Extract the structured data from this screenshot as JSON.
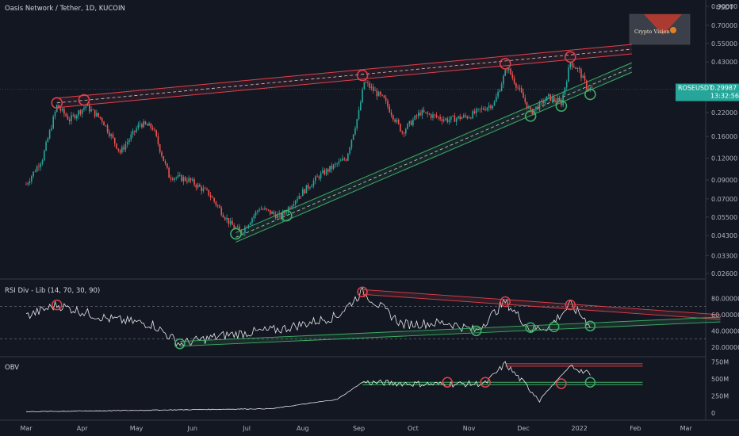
{
  "header": {
    "title": "Oasis Network / Tether, 1D, KUCOIN"
  },
  "price_axis": {
    "currency": "USDT",
    "ticks": [
      "0.90000",
      "0.70000",
      "0.55000",
      "0.43000",
      "0.30000",
      "0.22000",
      "0.16000",
      "0.12000",
      "0.09000",
      "0.07000",
      "0.05500",
      "0.04300",
      "0.03300",
      "0.02600"
    ]
  },
  "price_tag": {
    "symbol": "ROSEUSDT",
    "price": "0.29987",
    "countdown": "13:32:56",
    "color": "#26a69a"
  },
  "rsi_panel": {
    "title": "RSI Div - Lib (14, 70, 30, 90)",
    "ticks": [
      "80.00000",
      "60.00000",
      "40.00000",
      "20.00000"
    ]
  },
  "obv_panel": {
    "title": "OBV",
    "ticks": [
      "750M",
      "500M",
      "250M",
      "0"
    ]
  },
  "time_axis": {
    "labels": [
      "Mar",
      "Apr",
      "May",
      "Jun",
      "Jul",
      "Aug",
      "Sep",
      "Oct",
      "Nov",
      "Dec",
      "2022",
      "Feb",
      "Mar"
    ]
  },
  "logo": {
    "text": "Crypto Vision"
  },
  "colors": {
    "background": "#131722",
    "up": "#26a69a",
    "down": "#ef5350",
    "resistance": "#e0414a",
    "support": "#3fae66",
    "line": "#e8e8e8"
  },
  "chart_data": {
    "type": "candlestick",
    "symbol": "ROSEUSDT",
    "exchange": "KUCOIN",
    "interval": "1D",
    "price_scale": "log",
    "price_range": [
      0.026,
      0.9
    ],
    "close_series": [
      {
        "date": "2021-03-01",
        "close": 0.085
      },
      {
        "date": "2021-03-10",
        "close": 0.12
      },
      {
        "date": "2021-03-18",
        "close": 0.24
      },
      {
        "date": "2021-03-25",
        "close": 0.2
      },
      {
        "date": "2021-04-03",
        "close": 0.24
      },
      {
        "date": "2021-04-12",
        "close": 0.2
      },
      {
        "date": "2021-04-22",
        "close": 0.13
      },
      {
        "date": "2021-05-03",
        "close": 0.19
      },
      {
        "date": "2021-05-10",
        "close": 0.18
      },
      {
        "date": "2021-05-19",
        "close": 0.095
      },
      {
        "date": "2021-05-30",
        "close": 0.09
      },
      {
        "date": "2021-06-10",
        "close": 0.075
      },
      {
        "date": "2021-06-22",
        "close": 0.05
      },
      {
        "date": "2021-06-28",
        "close": 0.045
      },
      {
        "date": "2021-07-08",
        "close": 0.062
      },
      {
        "date": "2021-07-20",
        "close": 0.055
      },
      {
        "date": "2021-07-28",
        "close": 0.07
      },
      {
        "date": "2021-08-10",
        "close": 0.095
      },
      {
        "date": "2021-08-25",
        "close": 0.12
      },
      {
        "date": "2021-09-01",
        "close": 0.22
      },
      {
        "date": "2021-09-04",
        "close": 0.33
      },
      {
        "date": "2021-09-15",
        "close": 0.26
      },
      {
        "date": "2021-09-25",
        "close": 0.17
      },
      {
        "date": "2021-10-05",
        "close": 0.22
      },
      {
        "date": "2021-10-20",
        "close": 0.2
      },
      {
        "date": "2021-11-01",
        "close": 0.21
      },
      {
        "date": "2021-11-15",
        "close": 0.25
      },
      {
        "date": "2021-11-22",
        "close": 0.4
      },
      {
        "date": "2021-11-30",
        "close": 0.28
      },
      {
        "date": "2021-12-05",
        "close": 0.22
      },
      {
        "date": "2021-12-15",
        "close": 0.27
      },
      {
        "date": "2021-12-22",
        "close": 0.25
      },
      {
        "date": "2021-12-27",
        "close": 0.43
      },
      {
        "date": "2022-01-01",
        "close": 0.38
      },
      {
        "date": "2022-01-05",
        "close": 0.31
      },
      {
        "date": "2022-01-08",
        "close": 0.29987
      }
    ],
    "resistance_channel": {
      "from": {
        "date": "2021-03-18",
        "price": 0.25
      },
      "to": {
        "date": "2022-01-30",
        "price": 0.51
      }
    },
    "support_channel": {
      "from": {
        "date": "2021-06-25",
        "price": 0.042
      },
      "to": {
        "date": "2022-01-30",
        "price": 0.4
      }
    },
    "touch_points": {
      "resistance": [
        {
          "date": "2021-03-18",
          "price": 0.25
        },
        {
          "date": "2021-04-02",
          "price": 0.26
        },
        {
          "date": "2021-09-03",
          "price": 0.36
        },
        {
          "date": "2021-11-21",
          "price": 0.42
        },
        {
          "date": "2021-12-27",
          "price": 0.46
        }
      ],
      "support": [
        {
          "date": "2021-06-25",
          "price": 0.044
        },
        {
          "date": "2021-07-23",
          "price": 0.056
        },
        {
          "date": "2021-12-05",
          "price": 0.21
        },
        {
          "date": "2021-12-22",
          "price": 0.24
        },
        {
          "date": "2022-01-07",
          "price": 0.28
        }
      ]
    },
    "rsi": {
      "range": [
        10,
        100
      ],
      "levels": [
        70,
        30
      ],
      "values": [
        {
          "date": "2021-03-01",
          "value": 58
        },
        {
          "date": "2021-03-18",
          "value": 72
        },
        {
          "date": "2021-04-15",
          "value": 55
        },
        {
          "date": "2021-05-10",
          "value": 48
        },
        {
          "date": "2021-05-25",
          "value": 24
        },
        {
          "date": "2021-06-20",
          "value": 35
        },
        {
          "date": "2021-07-20",
          "value": 42
        },
        {
          "date": "2021-08-20",
          "value": 58
        },
        {
          "date": "2021-09-03",
          "value": 88
        },
        {
          "date": "2021-09-25",
          "value": 48
        },
        {
          "date": "2021-10-20",
          "value": 50
        },
        {
          "date": "2021-11-05",
          "value": 40
        },
        {
          "date": "2021-11-21",
          "value": 76
        },
        {
          "date": "2021-12-05",
          "value": 42
        },
        {
          "date": "2021-12-15",
          "value": 45
        },
        {
          "date": "2021-12-27",
          "value": 72
        },
        {
          "date": "2022-01-07",
          "value": 48
        }
      ],
      "trendlines": {
        "bearish": {
          "from": {
            "date": "2021-09-03",
            "value": 88
          },
          "to": {
            "date": "2022-03-20",
            "value": 57
          }
        },
        "bullish": {
          "from": {
            "date": "2021-05-25",
            "value": 24
          },
          "to": {
            "date": "2022-03-20",
            "value": 54
          }
        }
      }
    },
    "obv": {
      "range": [
        -80,
        800
      ],
      "unit": "M",
      "values": [
        {
          "date": "2021-03-01",
          "value": 20
        },
        {
          "date": "2021-05-01",
          "value": 40
        },
        {
          "date": "2021-07-15",
          "value": 65
        },
        {
          "date": "2021-08-20",
          "value": 200
        },
        {
          "date": "2021-09-03",
          "value": 450
        },
        {
          "date": "2021-10-15",
          "value": 420
        },
        {
          "date": "2021-11-10",
          "value": 430
        },
        {
          "date": "2021-11-21",
          "value": 720
        },
        {
          "date": "2021-12-10",
          "value": 200
        },
        {
          "date": "2021-12-27",
          "value": 690
        },
        {
          "date": "2022-01-07",
          "value": 560
        }
      ],
      "levels": [
        720,
        450
      ]
    }
  }
}
